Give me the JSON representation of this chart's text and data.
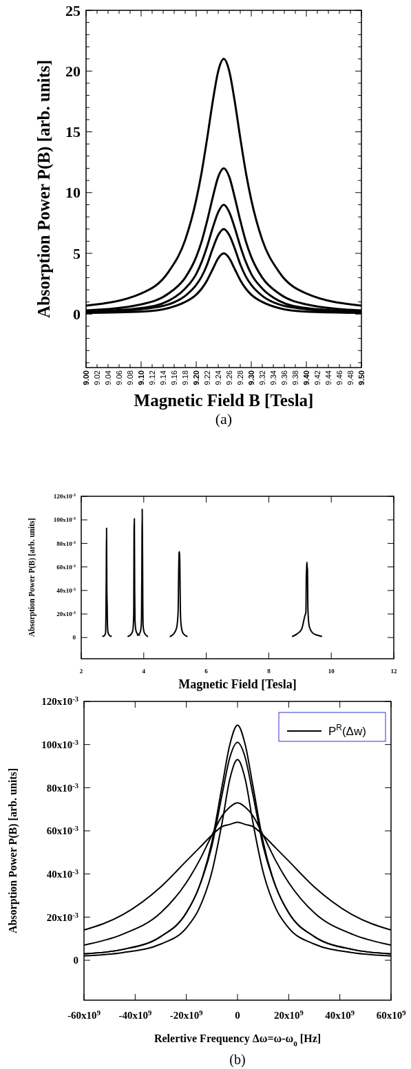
{
  "chart_data": [
    {
      "type": "line",
      "xlabel": "Magnetic Field B [Tesla]",
      "ylabel": "Absorption Power P(B) [arb. units]",
      "annotations": [
        "(a)"
      ],
      "xlim": [
        9,
        9.5
      ],
      "ylim": [
        -4.4,
        25
      ],
      "xticks": [
        {
          "value": 9,
          "label": "9.00"
        },
        {
          "value": 9.02,
          "label": "9.02"
        },
        {
          "value": 9.04,
          "label": "9.04"
        },
        {
          "value": 9.06,
          "label": "9.06"
        },
        {
          "value": 9.08,
          "label": "9.08"
        },
        {
          "value": 9.1,
          "label": "9.10"
        },
        {
          "value": 9.12,
          "label": "9.12"
        },
        {
          "value": 9.14,
          "label": "9.14"
        },
        {
          "value": 9.16,
          "label": "9.16"
        },
        {
          "value": 9.18,
          "label": "9.18"
        },
        {
          "value": 9.2,
          "label": "9.20"
        },
        {
          "value": 9.22,
          "label": "9.22"
        },
        {
          "value": 9.24,
          "label": "9.24"
        },
        {
          "value": 9.26,
          "label": "9.26"
        },
        {
          "value": 9.28,
          "label": "9.28"
        },
        {
          "value": 9.3,
          "label": "9.30"
        },
        {
          "value": 9.32,
          "label": "9.32"
        },
        {
          "value": 9.34,
          "label": "9.34"
        },
        {
          "value": 9.36,
          "label": "9.36"
        },
        {
          "value": 9.38,
          "label": "9.38"
        },
        {
          "value": 9.4,
          "label": "9.40"
        },
        {
          "value": 9.42,
          "label": "9.42"
        },
        {
          "value": 9.44,
          "label": "9.44"
        },
        {
          "value": 9.46,
          "label": "9.46"
        },
        {
          "value": 9.48,
          "label": "9.48"
        },
        {
          "value": 9.5,
          "label": "9.50"
        }
      ],
      "yticks": [
        {
          "value": -4,
          "label": null
        },
        {
          "value": -3,
          "label": null
        },
        {
          "value": -2,
          "label": null
        },
        {
          "value": -1,
          "label": null
        },
        0,
        {
          "value": 1,
          "label": null
        },
        {
          "value": 2,
          "label": null
        },
        {
          "value": 3,
          "label": null
        },
        {
          "value": 4,
          "label": null
        },
        5,
        {
          "value": 6,
          "label": null
        },
        {
          "value": 7,
          "label": null
        },
        {
          "value": 8,
          "label": null
        },
        {
          "value": 9,
          "label": null
        },
        10,
        {
          "value": 11,
          "label": null
        },
        {
          "value": 12,
          "label": null
        },
        {
          "value": 13,
          "label": null
        },
        {
          "value": 14,
          "label": null
        },
        15,
        {
          "value": 16,
          "label": null
        },
        {
          "value": 17,
          "label": null
        },
        {
          "value": 18,
          "label": null
        },
        {
          "value": 19,
          "label": null
        },
        20,
        {
          "value": 21,
          "label": null
        },
        {
          "value": 22,
          "label": null
        },
        {
          "value": 23,
          "label": null
        },
        {
          "value": 24,
          "label": null
        },
        25
      ],
      "x": [
        9.0,
        9.1,
        9.15,
        9.18,
        9.2,
        9.21,
        9.22,
        9.23,
        9.24,
        9.25,
        9.26,
        9.27,
        9.28,
        9.29,
        9.3,
        9.32,
        9.35,
        9.4,
        9.5
      ],
      "series": [
        {
          "color": "#000000",
          "values": [
            0.7,
            1.7,
            3.5,
            6.1,
            9.4,
            11.7,
            14.5,
            17.5,
            20.0,
            21,
            20.0,
            17.5,
            14.5,
            11.7,
            9.4,
            6.1,
            3.5,
            1.7,
            0.7
          ]
        },
        {
          "color": "#000000",
          "values": [
            0.3,
            0.8,
            1.7,
            3.0,
            4.7,
            6.0,
            7.7,
            9.6,
            11.3,
            12,
            11.3,
            9.6,
            7.7,
            6.0,
            4.7,
            3.0,
            1.7,
            0.8,
            0.3
          ]
        },
        {
          "color": "#000000",
          "values": [
            0.2,
            0.5,
            1.1,
            2.1,
            3.3,
            4.3,
            5.6,
            7.1,
            8.4,
            9,
            8.4,
            7.1,
            5.6,
            4.3,
            3.3,
            2.1,
            1.1,
            0.5,
            0.2
          ]
        },
        {
          "color": "#000000",
          "values": [
            0.1,
            0.4,
            0.8,
            1.5,
            2.4,
            3.1,
            4.1,
            5.4,
            6.5,
            7,
            6.5,
            5.4,
            4.1,
            3.1,
            2.4,
            1.5,
            0.8,
            0.4,
            0.1
          ]
        },
        {
          "color": "#000000",
          "values": [
            0.1,
            0.2,
            0.5,
            1.0,
            1.6,
            2.1,
            2.8,
            3.7,
            4.6,
            5,
            4.6,
            3.7,
            2.8,
            2.1,
            1.6,
            1.0,
            0.5,
            0.2,
            0.1
          ]
        }
      ]
    },
    {
      "type": "line",
      "xlabel": "Magnetic Field [Tesla]",
      "ylabel": "Absorption Power P(B) [arb. units]",
      "xlim": [
        2,
        12
      ],
      "ylim": [
        -0.018,
        0.12
      ],
      "xticks": [
        2,
        4,
        6,
        8,
        10,
        12
      ],
      "yticks": [
        0,
        {
          "value": 0.02,
          "label": "20x10$^{-3}$"
        },
        {
          "value": 0.04,
          "label": "40x10$^{-3}$"
        },
        {
          "value": 0.06,
          "label": "60x10$^{-3}$"
        },
        {
          "value": 0.08,
          "label": "80x10$^{-3}$"
        },
        {
          "value": 0.1,
          "label": "100x10$^{-3}$"
        },
        {
          "value": 0.12,
          "label": "120x10$^{-3}$"
        }
      ],
      "series": [
        {
          "color": "#000000",
          "x": [
            2.69,
            2.75,
            2.78,
            2.79,
            2.8,
            2.81,
            2.82,
            2.83,
            2.84,
            2.86,
            2.9,
            2.96
          ],
          "values": [
            0.001,
            0.002,
            0.004,
            0.02,
            0.05,
            0.093,
            0.04,
            0.028,
            0.01,
            0.004,
            0.002,
            0.001
          ]
        },
        {
          "color": "#000000",
          "x": [
            3.5,
            3.6,
            3.65,
            3.68,
            3.69,
            3.7,
            3.71,
            3.72,
            3.75,
            3.8,
            3.86
          ],
          "values": [
            0.001,
            0.003,
            0.006,
            0.02,
            0.091,
            0.101,
            0.04,
            0.015,
            0.006,
            0.003,
            0.002
          ]
        },
        {
          "color": "#000000",
          "x": [
            3.8,
            3.88,
            3.92,
            3.93,
            3.94,
            3.95,
            3.96,
            3.97,
            3.98,
            4.02,
            4.12
          ],
          "values": [
            0.002,
            0.004,
            0.01,
            0.021,
            0.06,
            0.109,
            0.081,
            0.03,
            0.01,
            0.004,
            0.001
          ]
        },
        {
          "color": "#000000",
          "x": [
            4.85,
            4.95,
            5.05,
            5.1,
            5.12,
            5.13,
            5.14,
            5.15,
            5.16,
            5.17,
            5.19,
            5.25,
            5.38
          ],
          "values": [
            0.001,
            0.003,
            0.008,
            0.022,
            0.06,
            0.072,
            0.073,
            0.073,
            0.05,
            0.027,
            0.012,
            0.004,
            0.001
          ]
        },
        {
          "color": "#000000",
          "x": [
            8.76,
            8.9,
            9.05,
            9.15,
            9.19,
            9.2,
            9.21,
            9.22,
            9.23,
            9.24,
            9.25,
            9.27,
            9.3,
            9.4,
            9.55,
            9.69
          ],
          "values": [
            0.001,
            0.003,
            0.007,
            0.018,
            0.022,
            0.052,
            0.058,
            0.064,
            0.06,
            0.057,
            0.027,
            0.015,
            0.009,
            0.004,
            0.002,
            0.001
          ]
        }
      ]
    },
    {
      "type": "line",
      "xlabel": "Relertive Frequency Δω=ω-ω$_{0}$ [Hz]",
      "ylabel": "Absorption Power P(B) [arb. units]",
      "annotations": [
        "(b)"
      ],
      "legend": "top right",
      "xlim": [
        -60000000000,
        60000000000
      ],
      "ylim": [
        -0.0185,
        0.12
      ],
      "xticks": [
        {
          "value": -60000000000,
          "label": "-60x10$^{9}$"
        },
        {
          "value": -40000000000,
          "label": "-40x10$^{9}$"
        },
        {
          "value": -20000000000,
          "label": "-20x10$^{9}$"
        },
        0,
        {
          "value": 20000000000,
          "label": "20x10$^{9}$"
        },
        {
          "value": 40000000000,
          "label": "40x10$^{9}$"
        },
        {
          "value": 60000000000,
          "label": "60x10$^{9}$"
        }
      ],
      "yticks": [
        0,
        {
          "value": 0.02,
          "label": "20x10$^{-3}$"
        },
        {
          "value": 0.04,
          "label": "40x10$^{-3}$"
        },
        {
          "value": 0.06,
          "label": "60x10$^{-3}$"
        },
        {
          "value": 0.08,
          "label": "80x10$^{-3}$"
        },
        {
          "value": 0.1,
          "label": "100x10$^{-3}$"
        },
        {
          "value": 0.12,
          "label": "120x10$^{-3}$"
        }
      ],
      "x": [
        -60000000000,
        -45000000000,
        -30000000000,
        -20000000000,
        -15000000000,
        -10000000000,
        -6000000000,
        -3000000000,
        0,
        3000000000,
        6000000000,
        10000000000,
        15000000000,
        20000000000,
        30000000000,
        45000000000,
        60000000000
      ],
      "series": [
        {
          "name": "P$^{R}$(Δw)",
          "color": "#000000",
          "values": [
            0.003,
            0.005,
            0.011,
            0.022,
            0.034,
            0.055,
            0.081,
            0.1,
            0.109,
            0.1,
            0.081,
            0.055,
            0.034,
            0.022,
            0.011,
            0.005,
            0.003
          ]
        },
        {
          "color": "#000000",
          "values": [
            0.003,
            0.005,
            0.011,
            0.022,
            0.034,
            0.053,
            0.077,
            0.094,
            0.101,
            0.094,
            0.077,
            0.053,
            0.034,
            0.022,
            0.011,
            0.005,
            0.003
          ]
        },
        {
          "color": "#000000",
          "values": [
            0.002,
            0.0035,
            0.0075,
            0.015,
            0.024,
            0.041,
            0.064,
            0.084,
            0.093,
            0.084,
            0.064,
            0.041,
            0.024,
            0.015,
            0.0075,
            0.0035,
            0.002
          ]
        },
        {
          "color": "#000000",
          "values": [
            0.007,
            0.012,
            0.022,
            0.036,
            0.046,
            0.058,
            0.067,
            0.071,
            0.073,
            0.071,
            0.067,
            0.058,
            0.046,
            0.036,
            0.022,
            0.012,
            0.007
          ]
        },
        {
          "color": "#000000",
          "values": [
            0.014,
            0.021,
            0.034,
            0.046,
            0.052,
            0.058,
            0.062,
            0.063,
            0.064,
            0.063,
            0.062,
            0.058,
            0.052,
            0.046,
            0.034,
            0.021,
            0.014
          ]
        }
      ]
    }
  ]
}
